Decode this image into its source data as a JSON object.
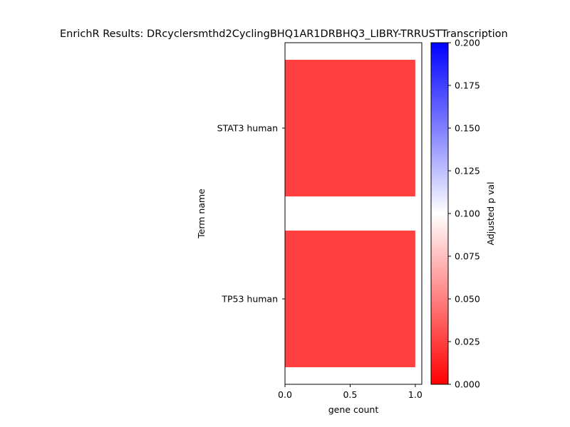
{
  "chart_data": {
    "type": "bar",
    "orientation": "horizontal",
    "title": "EnrichR Results: DRcyclersmthd2CyclingBHQ1AR1DRBHQ3_LIBRY-TRRUSTTranscription",
    "xlabel": "gene count",
    "ylabel": "Term name",
    "categories": [
      "STAT3 human",
      "TP53 human"
    ],
    "values": [
      1,
      1
    ],
    "adjusted_p_values": [
      0.025,
      0.025
    ],
    "xlim": [
      0,
      1.05
    ],
    "xticks": [
      "0.0",
      "0.5",
      "1.0"
    ],
    "grid": false,
    "colorbar": {
      "label": "Adjusted p val",
      "range": [
        0,
        0.2
      ],
      "ticks": [
        "0.000",
        "0.025",
        "0.050",
        "0.075",
        "0.100",
        "0.125",
        "0.150",
        "0.175",
        "0.200"
      ],
      "colors": [
        "#ff0000",
        "#ffffff",
        "#0000ff"
      ]
    }
  }
}
